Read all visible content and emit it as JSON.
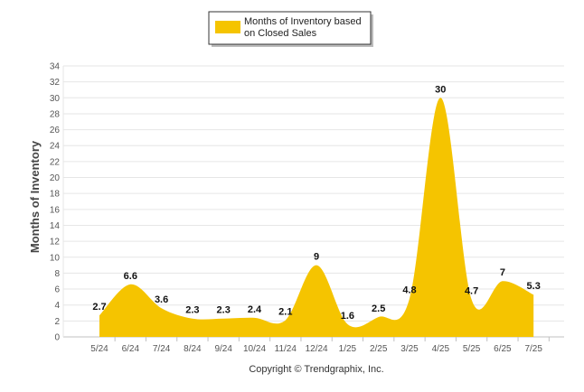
{
  "chart_data": {
    "type": "area",
    "categories": [
      "5/24",
      "6/24",
      "7/24",
      "8/24",
      "9/24",
      "10/24",
      "11/24",
      "12/24",
      "1/25",
      "2/25",
      "3/25",
      "4/25",
      "5/25",
      "6/25",
      "7/25"
    ],
    "series": [
      {
        "name": "Months of Inventory based on Closed Sales",
        "values": [
          2.7,
          6.6,
          3.6,
          2.3,
          2.3,
          2.4,
          2.1,
          9,
          1.6,
          2.5,
          4.8,
          30,
          4.7,
          7,
          5.3
        ],
        "labels": [
          "2.7",
          "6.6",
          "3.6",
          "2.3",
          "2.3",
          "2.4",
          "2.1",
          "9",
          "1.6",
          "2.5",
          "4.8",
          "30",
          "4.7",
          "7",
          "5.3"
        ]
      }
    ],
    "legend_lines": [
      "Months of Inventory based",
      "on Closed Sales"
    ],
    "ylabel": "Months of Inventory",
    "ylim": [
      0,
      34
    ],
    "yticks": [
      "0",
      "2",
      "4",
      "6",
      "8",
      "10",
      "12",
      "14",
      "16",
      "18",
      "20",
      "22",
      "24",
      "26",
      "28",
      "30",
      "32",
      "34"
    ],
    "grid": true,
    "legend_position": "top-center",
    "colors": {
      "series": "#F5C400",
      "grid": "#E6E6E6",
      "axis": "#C0C0C0"
    }
  },
  "footer": {
    "copyright": "Copyright © Trendgraphix, Inc."
  }
}
